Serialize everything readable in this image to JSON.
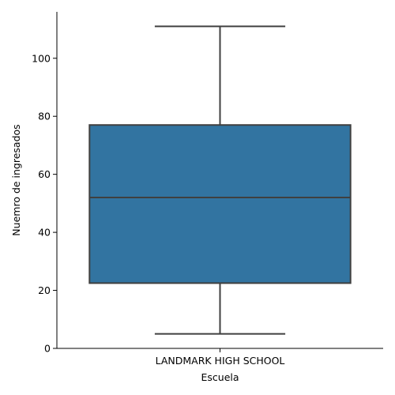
{
  "chart_data": {
    "type": "box",
    "xlabel": "Escuela",
    "ylabel": "Nuemro de ingresados",
    "categories": [
      "LANDMARK HIGH SCHOOL"
    ],
    "boxes": [
      {
        "category": "LANDMARK HIGH SCHOOL",
        "whisker_low": 5,
        "q1": 22.5,
        "median": 52,
        "q3": 77,
        "whisker_high": 111
      }
    ],
    "ylim": [
      0,
      116
    ],
    "yticks": [
      0,
      20,
      40,
      60,
      80,
      100
    ],
    "box_color": "#3274a1",
    "line_color": "#404040",
    "grid": false
  }
}
